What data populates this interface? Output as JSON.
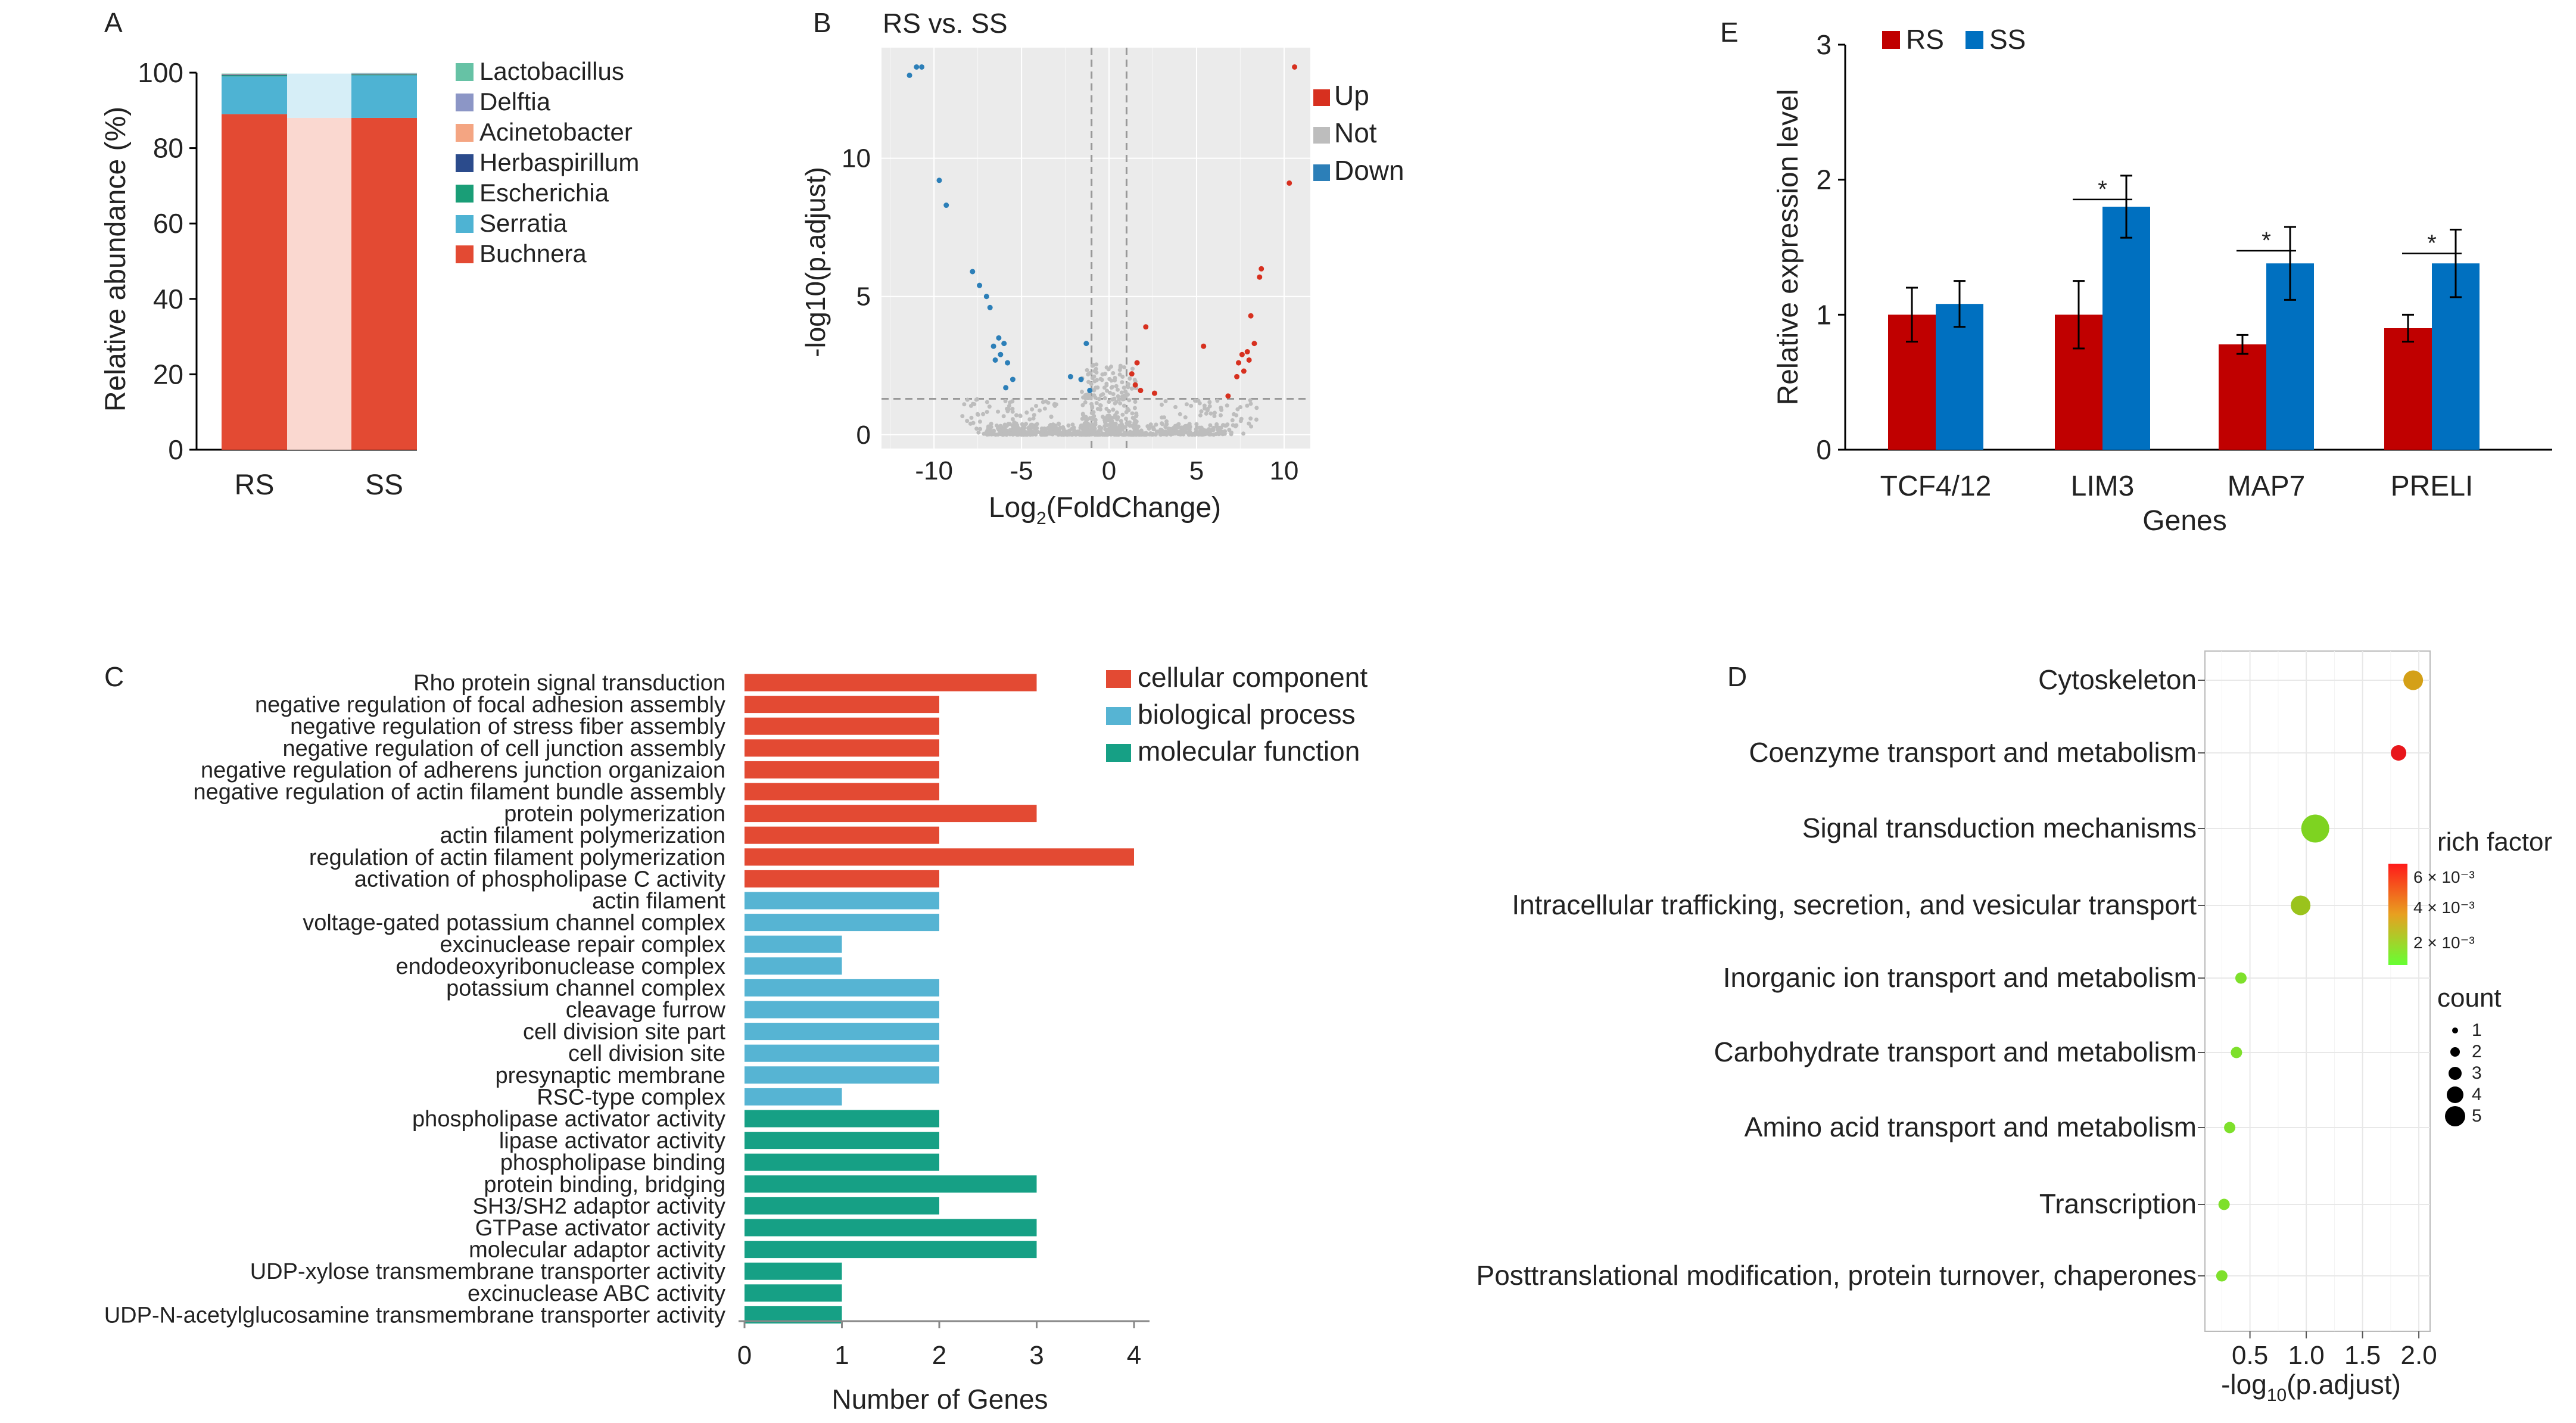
{
  "chart_data": [
    {
      "panel": "A",
      "type": "bar",
      "stacked": true,
      "ylabel": "Relative abundance (%)",
      "ylim": [
        0,
        100
      ],
      "yticks": [
        0,
        20,
        40,
        60,
        80,
        100
      ],
      "categories": [
        "RS",
        "SS"
      ],
      "series": [
        {
          "name": "Buchnera",
          "color": "#e34a33",
          "values": [
            89,
            88
          ]
        },
        {
          "name": "Serratia",
          "color": "#4eb3d3",
          "values": [
            10,
            11.3
          ]
        },
        {
          "name": "Escherichia",
          "color": "#1a9e77",
          "values": [
            0.3,
            0.2
          ]
        },
        {
          "name": "Herbaspirillum",
          "color": "#2b4b8c",
          "values": [
            0.15,
            0.1
          ]
        },
        {
          "name": "Acinetobacter",
          "color": "#f4a582",
          "values": [
            0.1,
            0.1
          ]
        },
        {
          "name": "Delftia",
          "color": "#8c96c6",
          "values": [
            0.1,
            0.1
          ]
        },
        {
          "name": "Lactobacillus",
          "color": "#66c2a5",
          "values": [
            0.1,
            0.1
          ]
        }
      ],
      "legend": [
        "Lactobacillus",
        "Delftia",
        "Acinetobacter",
        "Herbaspirillum",
        "Escherichia",
        "Serratia",
        "Buchnera"
      ]
    },
    {
      "panel": "B",
      "type": "scatter",
      "title": "RS vs. SS",
      "xlabel_main": "Log",
      "xlabel_sub": "2",
      "xlabel_rest": "(FoldChange)",
      "ylabel": "-log10(p.adjust)",
      "xlim": [
        -13,
        11.5
      ],
      "ylim": [
        -0.5,
        14
      ],
      "xticks": [
        -10,
        -5,
        0,
        5,
        10
      ],
      "yticks": [
        0,
        5,
        10
      ],
      "fc_threshold": [
        -1,
        1
      ],
      "p_threshold": 1.3,
      "legend": [
        {
          "label": "Up",
          "color": "#d7301f"
        },
        {
          "label": "Not",
          "color": "#bdbdbd"
        },
        {
          "label": "Down",
          "color": "#2c7fb8"
        }
      ],
      "up": [
        [
          10.6,
          13.3
        ],
        [
          10.3,
          9.1
        ],
        [
          8.7,
          6.0
        ],
        [
          8.6,
          5.7
        ],
        [
          8.1,
          4.3
        ],
        [
          8.3,
          3.3
        ],
        [
          7.9,
          3.0
        ],
        [
          7.6,
          2.9
        ],
        [
          8.0,
          2.7
        ],
        [
          7.4,
          2.6
        ],
        [
          7.7,
          2.3
        ],
        [
          7.3,
          2.1
        ],
        [
          5.4,
          3.2
        ],
        [
          6.8,
          1.4
        ],
        [
          2.1,
          3.9
        ],
        [
          1.6,
          2.6
        ],
        [
          1.3,
          2.2
        ],
        [
          1.5,
          1.8
        ],
        [
          1.8,
          1.6
        ],
        [
          2.6,
          1.5
        ]
      ],
      "down": [
        [
          -11.4,
          13.0
        ],
        [
          -11.0,
          13.3
        ],
        [
          -10.7,
          13.3
        ],
        [
          -9.7,
          9.2
        ],
        [
          -9.3,
          8.3
        ],
        [
          -7.8,
          5.9
        ],
        [
          -7.4,
          5.4
        ],
        [
          -7.0,
          5.0
        ],
        [
          -6.8,
          4.6
        ],
        [
          -6.3,
          3.5
        ],
        [
          -6.0,
          3.3
        ],
        [
          -6.6,
          3.2
        ],
        [
          -6.2,
          2.9
        ],
        [
          -5.8,
          2.6
        ],
        [
          -6.5,
          2.7
        ],
        [
          -5.5,
          2.0
        ],
        [
          -5.9,
          1.7
        ],
        [
          -1.3,
          3.3
        ],
        [
          -2.2,
          2.1
        ],
        [
          -1.6,
          2.0
        ],
        [
          -1.1,
          1.6
        ]
      ],
      "not_sample_count": 900
    },
    {
      "panel": "E",
      "type": "bar",
      "grouped": true,
      "xlabel": "Genes",
      "ylabel": "Relative expression level",
      "ylim": [
        0,
        3
      ],
      "yticks": [
        0,
        1,
        2,
        3
      ],
      "categories": [
        "TCF4/12",
        "LIM3",
        "MAP7",
        "PRELI"
      ],
      "series": [
        {
          "name": "RS",
          "color": "#c00000",
          "values": [
            1.0,
            1.0,
            0.78,
            0.9
          ],
          "errors": [
            0.2,
            0.25,
            0.07,
            0.1
          ]
        },
        {
          "name": "SS",
          "color": "#0070c0",
          "values": [
            1.08,
            1.8,
            1.38,
            1.38
          ],
          "errors": [
            0.17,
            0.23,
            0.27,
            0.25
          ]
        }
      ],
      "significance": [
        "",
        "*",
        "*",
        "*"
      ]
    },
    {
      "panel": "C",
      "type": "bar",
      "orientation": "horizontal",
      "xlabel": "Number of Genes",
      "xlim": [
        0,
        4.2
      ],
      "xticks": [
        0,
        1,
        2,
        3,
        4
      ],
      "groups": [
        {
          "name": "cellular component",
          "color": "#e34a33"
        },
        {
          "name": "biological process",
          "color": "#56b4d3"
        },
        {
          "name": "molecular function",
          "color": "#16a085"
        }
      ],
      "categories": [
        "Rho protein signal transduction",
        "negative regulation of focal adhesion assembly",
        "negative regulation of stress fiber assembly",
        "negative regulation of cell junction assembly",
        "negative regulation of adherens junction organizaion",
        "negative regulation of actin filament bundle assembly",
        "protein polymerization",
        "actin filament polymerization",
        "regulation of actin filament polymerization",
        "activation of phospholipase C activity",
        "actin filament",
        "voltage-gated potassium channel complex",
        "excinuclease repair complex",
        "endodeoxyribonuclease complex",
        "potassium channel complex",
        "cleavage furrow",
        "cell division site part",
        "cell division site",
        "presynaptic membrane",
        "RSC-type complex",
        "phospholipase activator activity",
        "lipase activator activity",
        "phospholipase binding",
        "protein binding, bridging",
        "SH3/SH2 adaptor activity",
        "GTPase activator activity",
        "molecular adaptor activity",
        "UDP-xylose transmembrane transporter activity",
        "excinuclease ABC activity",
        "UDP-N-acetylglucosamine transmembrane transporter activity"
      ],
      "values": [
        3,
        2,
        2,
        2,
        2,
        2,
        3,
        2,
        4,
        2,
        2,
        2,
        1,
        1,
        2,
        2,
        2,
        2,
        2,
        1,
        2,
        2,
        2,
        3,
        2,
        3,
        3,
        1,
        1,
        1
      ],
      "group_index": [
        0,
        0,
        0,
        0,
        0,
        0,
        0,
        0,
        0,
        0,
        1,
        1,
        1,
        1,
        1,
        1,
        1,
        1,
        1,
        1,
        2,
        2,
        2,
        2,
        2,
        2,
        2,
        2,
        2,
        2
      ]
    },
    {
      "panel": "D",
      "type": "scatter",
      "subtype": "dotplot",
      "xlabel_main": "-log",
      "xlabel_sub": "10",
      "xlabel_rest": "(p.adjust)",
      "xlim": [
        0.1,
        2.1
      ],
      "xticks": [
        0.5,
        1.0,
        1.5,
        2.0
      ],
      "xtick_labels": [
        "0.5",
        "1.0",
        "1.5",
        "2.0"
      ],
      "categories": [
        "Cytoskeleton",
        "Coenzyme transport and metabolism",
        "Signal transduction mechanisms",
        "Intracellular trafficking, secretion, and vesicular transport",
        "Inorganic ion transport and metabolism",
        "Carbohydrate transport and metabolism",
        "Amino acid transport and metabolism",
        "Transcription",
        "Posttranslational modification, protein turnover, chaperones"
      ],
      "x": [
        1.95,
        1.82,
        1.08,
        0.95,
        0.42,
        0.38,
        0.32,
        0.27,
        0.25
      ],
      "count": [
        3,
        2,
        5,
        3,
        1,
        1,
        1,
        1,
        1
      ],
      "color": [
        "#d4a017",
        "#e8161b",
        "#7ed321",
        "#9ac31c",
        "#7ee02b",
        "#7ee02b",
        "#7ee02b",
        "#7ee02b",
        "#7ee02b"
      ],
      "legend_color_title": "rich factor",
      "legend_color_labels": [
        "6 × 10⁻³",
        "4 × 10⁻³",
        "2 × 10⁻³"
      ],
      "legend_size_title": "count",
      "legend_size_labels": [
        "1",
        "2",
        "3",
        "4",
        "5"
      ]
    }
  ],
  "panel_labels": {
    "a": "A",
    "b": "B",
    "c": "C",
    "d": "D",
    "e": "E"
  }
}
